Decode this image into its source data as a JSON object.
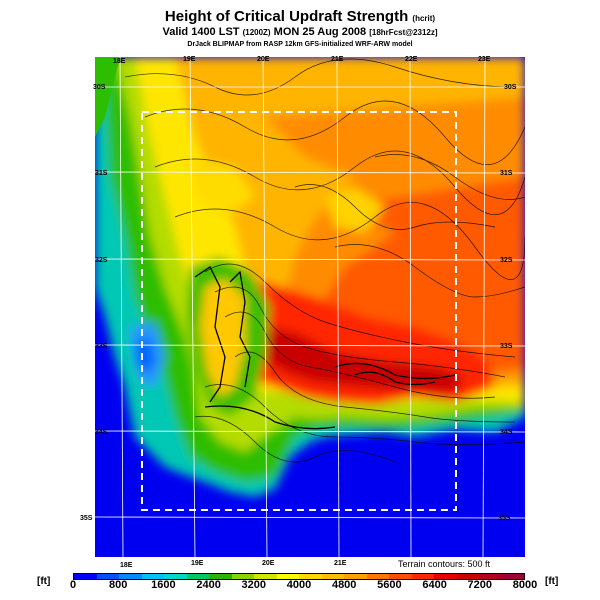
{
  "title": "Height of Critical Updraft Strength",
  "title_unit": "(hcrit)",
  "subtitle_main": "Valid 1400 LST",
  "subtitle_small1": "(1200Z)",
  "subtitle_date": "MON 25 Aug 2008",
  "subtitle_small2": "[18hrFcst@2312z]",
  "credit": "DrJack BLIPMAP from RASP 12km GFS-initialized WRF-ARW model",
  "lon_labels_top": [
    "18E",
    "19E",
    "20E",
    "21E",
    "22E",
    "23E"
  ],
  "lon_labels_bottom": [
    "18E",
    "19E",
    "20E",
    "21E"
  ],
  "lat_labels_left": [
    "30S",
    "31S",
    "32S",
    "33S",
    "34S",
    "35S"
  ],
  "lat_labels_right": [
    "30S",
    "31S",
    "32S",
    "33S",
    "34S",
    "35S"
  ],
  "terrain_note": "Terrain contours: 500 ft",
  "colorbar": {
    "unit_left": "[ft]",
    "unit_right": "[ft]",
    "tick_labels": [
      "0",
      "800",
      "1600",
      "2400",
      "3200",
      "4000",
      "4800",
      "5600",
      "6400",
      "7200",
      "8000"
    ],
    "colors": [
      "#0000ff",
      "#0050ff",
      "#008cff",
      "#00c0ff",
      "#00d8c8",
      "#00c864",
      "#2db400",
      "#8cd200",
      "#d2e600",
      "#ffff00",
      "#ffdc00",
      "#ffbe00",
      "#ffa000",
      "#ff7800",
      "#ff5000",
      "#ff2800",
      "#e60000",
      "#c80000",
      "#b4001e",
      "#a00032"
    ]
  }
}
